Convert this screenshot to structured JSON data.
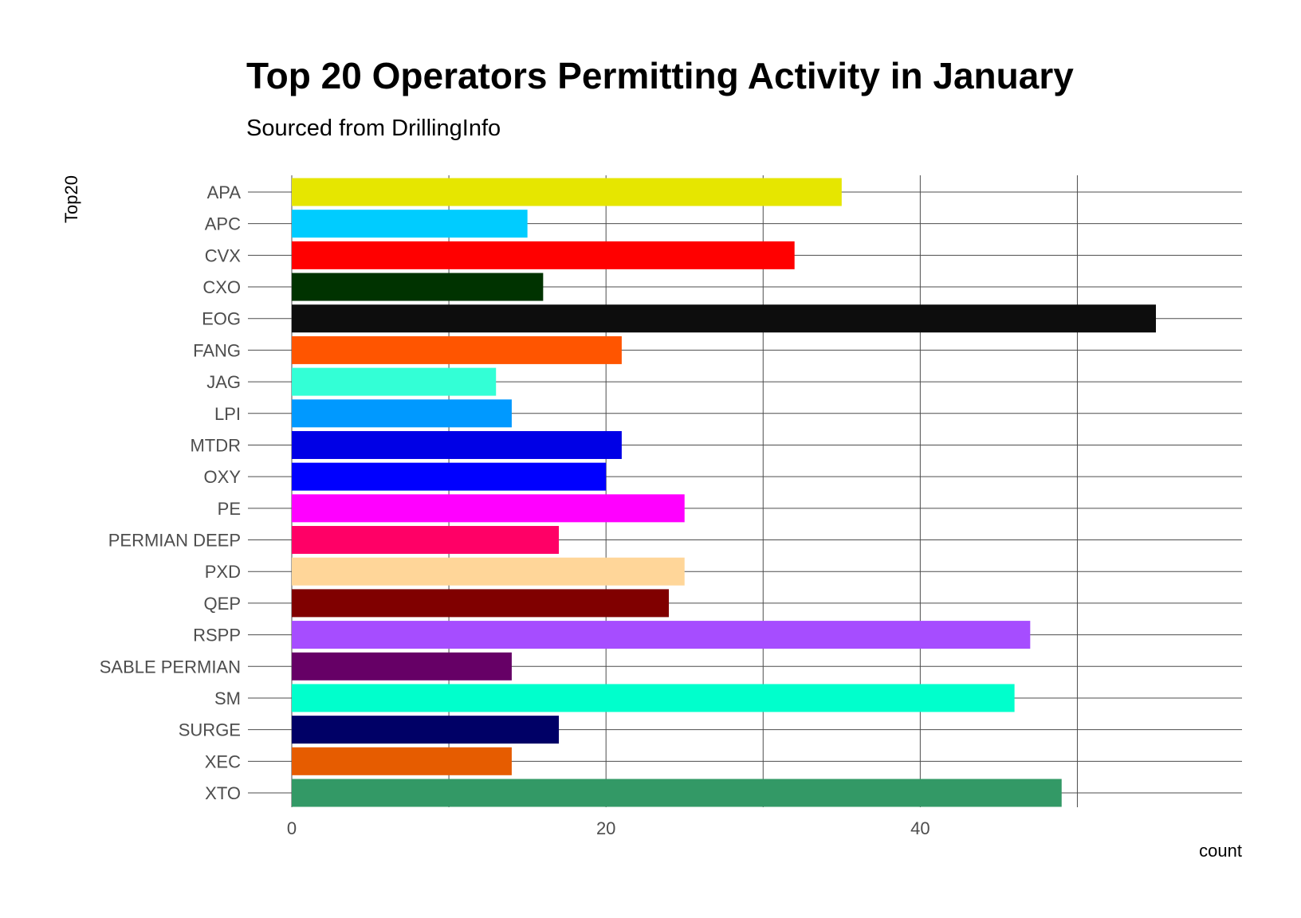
{
  "chart_data": {
    "type": "bar",
    "orientation": "horizontal",
    "title": "Top 20 Operators Permitting Activity in January",
    "subtitle": "Sourced from DrillingInfo",
    "xlabel": "count",
    "ylabel": "Top20",
    "xlim": [
      0,
      58
    ],
    "x_ticks": [
      0,
      20,
      40
    ],
    "grid": true,
    "legend": "none",
    "categories": [
      "APA",
      "APC",
      "CVX",
      "CXO",
      "EOG",
      "FANG",
      "JAG",
      "LPI",
      "MTDR",
      "OXY",
      "PE",
      "PERMIAN DEEP",
      "PXD",
      "QEP",
      "RSPP",
      "SABLE PERMIAN",
      "SM",
      "SURGE",
      "XEC",
      "XTO"
    ],
    "values": [
      35,
      15,
      32,
      16,
      55,
      21,
      13,
      14,
      21,
      20,
      25,
      17,
      25,
      24,
      47,
      14,
      46,
      17,
      14,
      49
    ],
    "colors": [
      "#e6e600",
      "#00ccff",
      "#ff0000",
      "#003300",
      "#0d0d0d",
      "#ff5500",
      "#33ffd6",
      "#0099ff",
      "#0000e6",
      "#0000ff",
      "#ff00ff",
      "#ff0066",
      "#ffd699",
      "#800000",
      "#a64dff",
      "#660066",
      "#00ffcc",
      "#000066",
      "#e65c00",
      "#339966"
    ]
  }
}
